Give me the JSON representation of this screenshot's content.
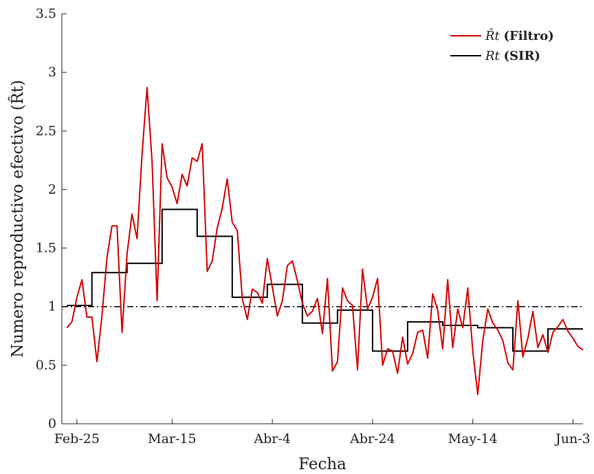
{
  "chart_data": {
    "type": "line",
    "xlabel": "Fecha",
    "ylabel": "Numero reproductivo efectivo (R̂t)",
    "ylim": [
      0,
      3.5
    ],
    "x_range_days": [
      -3,
      101
    ],
    "x_ticks": [
      {
        "day": 0,
        "label": "Feb-25"
      },
      {
        "day": 19,
        "label": "Mar-15"
      },
      {
        "day": 39,
        "label": "Abr-4"
      },
      {
        "day": 59,
        "label": "Abr-24"
      },
      {
        "day": 79,
        "label": "May-14"
      },
      {
        "day": 99,
        "label": "Jun-3"
      }
    ],
    "y_ticks": [
      "0",
      "0.5",
      "1",
      "1.5",
      "2",
      "2.5",
      "3",
      "3.5"
    ],
    "y_tick_values": [
      0,
      0.5,
      1,
      1.5,
      2,
      2.5,
      3,
      3.5
    ],
    "reference_line": {
      "y": 1,
      "style": "dash-dot",
      "color": "#000000"
    },
    "legend": {
      "position": "top-right",
      "entries": [
        {
          "symbol": "R̂t",
          "label": "(Filtro)",
          "color": "#d40000"
        },
        {
          "symbol": "Rt",
          "label": "(SIR)",
          "color": "#000000"
        }
      ]
    },
    "series": [
      {
        "name": "R̂t (Filtro)",
        "color": "#d40000",
        "x": [
          -2,
          -1,
          0,
          1,
          2,
          3,
          4,
          5,
          6,
          7,
          8,
          9,
          10,
          11,
          12,
          13,
          14,
          15,
          16,
          17,
          18,
          19,
          20,
          21,
          22,
          23,
          24,
          25,
          26,
          27,
          28,
          29,
          30,
          31,
          32,
          33,
          34,
          35,
          36,
          37,
          38,
          39,
          40,
          41,
          42,
          43,
          44,
          45,
          46,
          47,
          48,
          49,
          50,
          51,
          52,
          53,
          54,
          55,
          56,
          57,
          58,
          59,
          60,
          61,
          62,
          63,
          64,
          65,
          66,
          67,
          68,
          69,
          70,
          71,
          72,
          73,
          74,
          75,
          76,
          77,
          78,
          79,
          80,
          81,
          82,
          83,
          84,
          85,
          86,
          87,
          88,
          89,
          90,
          91,
          92,
          93,
          94,
          95,
          96,
          97,
          98,
          99,
          100,
          101
        ],
        "y": [
          0.82,
          0.87,
          1.08,
          1.23,
          0.91,
          0.91,
          0.53,
          0.92,
          1.42,
          1.69,
          1.69,
          0.78,
          1.45,
          1.79,
          1.58,
          2.3,
          2.87,
          2.24,
          1.05,
          2.39,
          2.1,
          2.02,
          1.88,
          2.13,
          2.03,
          2.27,
          2.24,
          2.39,
          1.3,
          1.39,
          1.67,
          1.84,
          2.09,
          1.72,
          1.65,
          1.07,
          0.89,
          1.15,
          1.12,
          1.03,
          1.41,
          1.17,
          0.92,
          1.05,
          1.35,
          1.39,
          1.22,
          1.03,
          0.92,
          0.96,
          1.07,
          0.77,
          1.24,
          0.45,
          0.53,
          1.16,
          1.05,
          1.01,
          0.46,
          1.32,
          0.98,
          1.08,
          1.24,
          0.5,
          0.64,
          0.62,
          0.43,
          0.74,
          0.51,
          0.6,
          0.78,
          0.8,
          0.56,
          1.11,
          0.97,
          0.64,
          1.23,
          0.65,
          0.98,
          0.82,
          1.16,
          0.62,
          0.25,
          0.71,
          0.98,
          0.86,
          0.8,
          0.71,
          0.52,
          0.46,
          1.05,
          0.57,
          0.73,
          0.96,
          0.65,
          0.76,
          0.61,
          0.78,
          0.83,
          0.89,
          0.79,
          0.73,
          0.66,
          0.63
        ]
      },
      {
        "name": "Rt (SIR)",
        "color": "#000000",
        "steps": [
          {
            "x0": -2,
            "x1": 3,
            "y": 1.01
          },
          {
            "x0": 3,
            "x1": 10,
            "y": 1.29
          },
          {
            "x0": 10,
            "x1": 17,
            "y": 1.37
          },
          {
            "x0": 17,
            "x1": 24,
            "y": 1.83
          },
          {
            "x0": 24,
            "x1": 31,
            "y": 1.6
          },
          {
            "x0": 31,
            "x1": 38,
            "y": 1.08
          },
          {
            "x0": 38,
            "x1": 45,
            "y": 1.19
          },
          {
            "x0": 45,
            "x1": 52,
            "y": 0.86
          },
          {
            "x0": 52,
            "x1": 59,
            "y": 0.97
          },
          {
            "x0": 59,
            "x1": 66,
            "y": 0.62
          },
          {
            "x0": 66,
            "x1": 73,
            "y": 0.87
          },
          {
            "x0": 73,
            "x1": 80,
            "y": 0.84
          },
          {
            "x0": 80,
            "x1": 87,
            "y": 0.82
          },
          {
            "x0": 87,
            "x1": 94,
            "y": 0.62
          },
          {
            "x0": 94,
            "x1": 101,
            "y": 0.81
          }
        ]
      }
    ]
  }
}
